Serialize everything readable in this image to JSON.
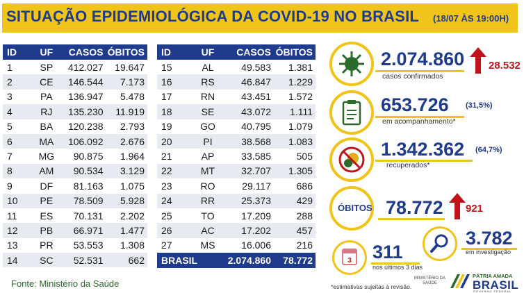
{
  "header": {
    "title": "SITUAÇÃO EPIDEMIOLÓGICA DA COVID-19 NO BRASIL",
    "timestamp": "(18/07 ÀS 19:00H)"
  },
  "table": {
    "columns": [
      "ID",
      "UF",
      "CASOS",
      "ÓBITOS"
    ],
    "left_rows": [
      {
        "id": "1",
        "uf": "SP",
        "casos": "412.027",
        "obitos": "19.647"
      },
      {
        "id": "2",
        "uf": "CE",
        "casos": "146.544",
        "obitos": "7.173"
      },
      {
        "id": "3",
        "uf": "PA",
        "casos": "136.947",
        "obitos": "5.478"
      },
      {
        "id": "4",
        "uf": "RJ",
        "casos": "135.230",
        "obitos": "11.919"
      },
      {
        "id": "5",
        "uf": "BA",
        "casos": "120.238",
        "obitos": "2.793"
      },
      {
        "id": "6",
        "uf": "MA",
        "casos": "106.092",
        "obitos": "2.676"
      },
      {
        "id": "7",
        "uf": "MG",
        "casos": "90.875",
        "obitos": "1.964"
      },
      {
        "id": "8",
        "uf": "AM",
        "casos": "90.534",
        "obitos": "3.129"
      },
      {
        "id": "9",
        "uf": "DF",
        "casos": "81.163",
        "obitos": "1.075"
      },
      {
        "id": "10",
        "uf": "PE",
        "casos": "78.509",
        "obitos": "5.928"
      },
      {
        "id": "11",
        "uf": "ES",
        "casos": "70.131",
        "obitos": "2.202"
      },
      {
        "id": "12",
        "uf": "PB",
        "casos": "66.971",
        "obitos": "1.477"
      },
      {
        "id": "13",
        "uf": "PR",
        "casos": "53.553",
        "obitos": "1.308"
      },
      {
        "id": "14",
        "uf": "SC",
        "casos": "52.531",
        "obitos": "662"
      }
    ],
    "right_rows": [
      {
        "id": "15",
        "uf": "AL",
        "casos": "49.583",
        "obitos": "1.381"
      },
      {
        "id": "16",
        "uf": "RS",
        "casos": "46.847",
        "obitos": "1.229"
      },
      {
        "id": "17",
        "uf": "RN",
        "casos": "43.451",
        "obitos": "1.572"
      },
      {
        "id": "18",
        "uf": "SE",
        "casos": "43.072",
        "obitos": "1.111"
      },
      {
        "id": "19",
        "uf": "GO",
        "casos": "40.795",
        "obitos": "1.079"
      },
      {
        "id": "20",
        "uf": "PI",
        "casos": "38.568",
        "obitos": "1.083"
      },
      {
        "id": "21",
        "uf": "AP",
        "casos": "33.585",
        "obitos": "505"
      },
      {
        "id": "22",
        "uf": "MT",
        "casos": "32.707",
        "obitos": "1.305"
      },
      {
        "id": "23",
        "uf": "RO",
        "casos": "29.117",
        "obitos": "686"
      },
      {
        "id": "24",
        "uf": "RR",
        "casos": "25.373",
        "obitos": "429"
      },
      {
        "id": "25",
        "uf": "TO",
        "casos": "17.209",
        "obitos": "288"
      },
      {
        "id": "26",
        "uf": "AC",
        "casos": "17.202",
        "obitos": "457"
      },
      {
        "id": "27",
        "uf": "MS",
        "casos": "16.006",
        "obitos": "216"
      }
    ],
    "total": {
      "label": "BRASIL",
      "casos": "2.074.860",
      "obitos": "78.772"
    }
  },
  "source": "Fonte: Ministério da Saúde",
  "stats": {
    "confirmed": {
      "value": "2.074.860",
      "label": "casos confirmados",
      "delta": "28.532"
    },
    "monitoring": {
      "value": "653.726",
      "label": "em acompanhamento*",
      "pct": "(31,5%)"
    },
    "recovered": {
      "value": "1.342.362",
      "label": "recuperados*",
      "pct": "(64,7%)"
    },
    "deaths": {
      "label": "ÓBITOS",
      "value": "78.772",
      "delta": "921"
    },
    "last_days": {
      "value": "311",
      "label": "nos últimos 3 dias",
      "icon_number": "3"
    },
    "investigation": {
      "value": "3.782",
      "label": "em investigação"
    }
  },
  "footnote": "*estimativas sujeitas à revisão.",
  "logos": {
    "ministry_line1": "MINISTÉRIO DA",
    "ministry_line2": "SAÚDE",
    "patria": "PÁTRIA AMADA",
    "brasil": "BRASIL",
    "gov": "GOVERNO FEDERAL"
  },
  "colors": {
    "brand_blue": "#1f3b8c",
    "brand_yellow": "#f0c419",
    "alert_red": "#c0141c",
    "green": "#2b6a2b"
  }
}
